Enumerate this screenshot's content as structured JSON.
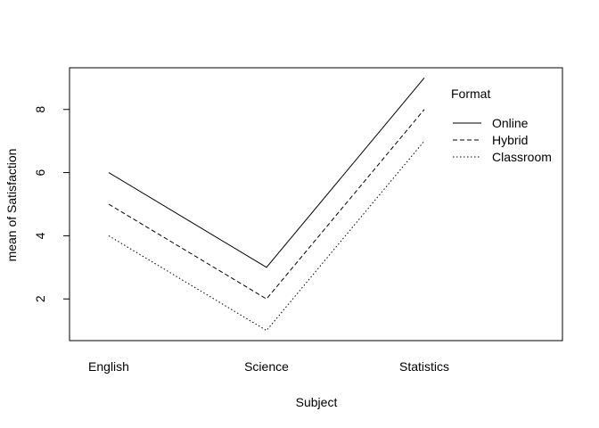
{
  "chart_data": {
    "type": "line",
    "title": "",
    "xlabel": "Subject",
    "ylabel": "mean of  Satisfaction",
    "categories": [
      "English",
      "Science",
      "Statistics"
    ],
    "y_ticks": [
      2,
      4,
      6,
      8
    ],
    "ylim": [
      0.68,
      9.32
    ],
    "grid": false,
    "legend": {
      "title": "Format",
      "placement": "top-right"
    },
    "series": [
      {
        "name": "Online",
        "values": [
          6,
          3,
          9
        ],
        "line_style": "solid"
      },
      {
        "name": "Hybrid",
        "values": [
          5,
          2,
          8
        ],
        "line_style": "dashed"
      },
      {
        "name": "Classroom",
        "values": [
          4,
          1,
          7
        ],
        "line_style": "dotted"
      }
    ],
    "colors": {
      "line": "#000000",
      "background": "#ffffff"
    }
  }
}
